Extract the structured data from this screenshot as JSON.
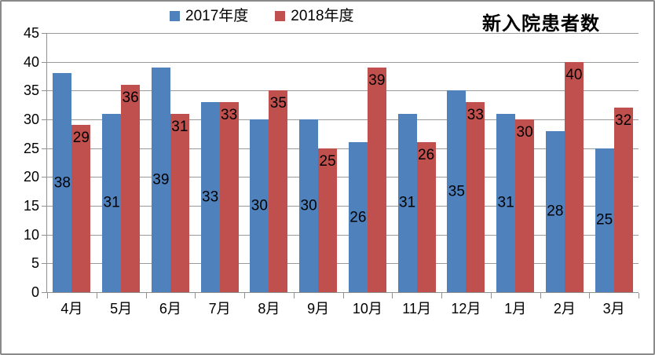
{
  "chart_data": {
    "type": "bar",
    "title": "新入院患者数",
    "categories": [
      "4月",
      "5月",
      "6月",
      "7月",
      "8月",
      "9月",
      "10月",
      "11月",
      "12月",
      "1月",
      "2月",
      "3月"
    ],
    "series": [
      {
        "name": "2017年度",
        "color": "#4F81BD",
        "label_position": "center",
        "values": [
          38,
          31,
          39,
          33,
          30,
          30,
          26,
          31,
          35,
          31,
          28,
          25
        ]
      },
      {
        "name": "2018年度",
        "color": "#C0504D",
        "label_position": "inside-end",
        "values": [
          29,
          36,
          31,
          33,
          35,
          25,
          39,
          26,
          33,
          30,
          40,
          32
        ]
      }
    ],
    "ylim": [
      0,
      45
    ],
    "ytick_step": 5,
    "yticks": [
      0,
      5,
      10,
      15,
      20,
      25,
      30,
      35,
      40,
      45
    ],
    "grid": true,
    "legend_position": "top",
    "data_labels": true,
    "gridline_color": "#9a9a9a",
    "axis_color": "#909090",
    "label_color": "#000000"
  }
}
